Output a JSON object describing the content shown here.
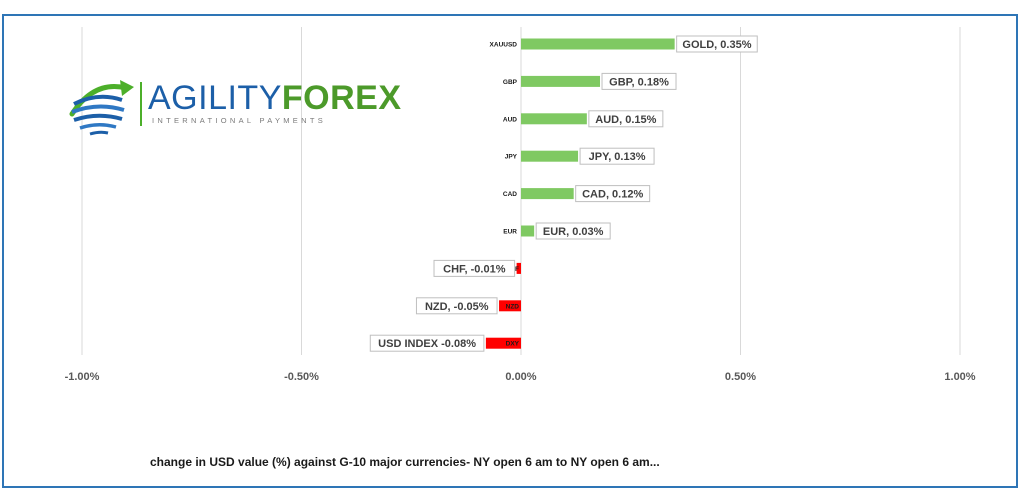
{
  "logo": {
    "word_agility": "AGILITY",
    "word_forex": "FOREX",
    "tagline": "INTERNATIONAL PAYMENTS"
  },
  "caption": "change in  USD value (%)  against  G-10 major currencies- NY open 6 am to NY open 6 am...",
  "chart_data": {
    "type": "bar",
    "orientation": "horizontal",
    "title": "",
    "xlabel": "",
    "ylabel": "",
    "xlim": [
      -1.0,
      1.0
    ],
    "x_ticks": [
      "-1.00%",
      "-0.50%",
      "0.00%",
      "0.50%",
      "1.00%"
    ],
    "x_tick_values": [
      -1.0,
      -0.5,
      0.0,
      0.5,
      1.0
    ],
    "grid": "vertical",
    "categories": [
      "XAUUSD",
      "GBP",
      "AUD",
      "JPY",
      "CAD",
      "EUR",
      "CHF",
      "NZD",
      "DXY"
    ],
    "values": [
      0.35,
      0.18,
      0.15,
      0.13,
      0.12,
      0.03,
      -0.01,
      -0.05,
      -0.08
    ],
    "data_labels": [
      "GOLD, 0.35%",
      "GBP, 0.18%",
      "AUD, 0.15%",
      "JPY, 0.13%",
      "CAD, 0.12%",
      "EUR, 0.03%",
      "CHF, -0.01%",
      "NZD, -0.05%",
      "USD INDEX -0.08%"
    ],
    "colors": {
      "positive": "#7fc962",
      "negative": "#ff0000",
      "grid": "#d9d9d9",
      "label_border": "#bfbfbf",
      "frame": "#2e75b6"
    }
  }
}
